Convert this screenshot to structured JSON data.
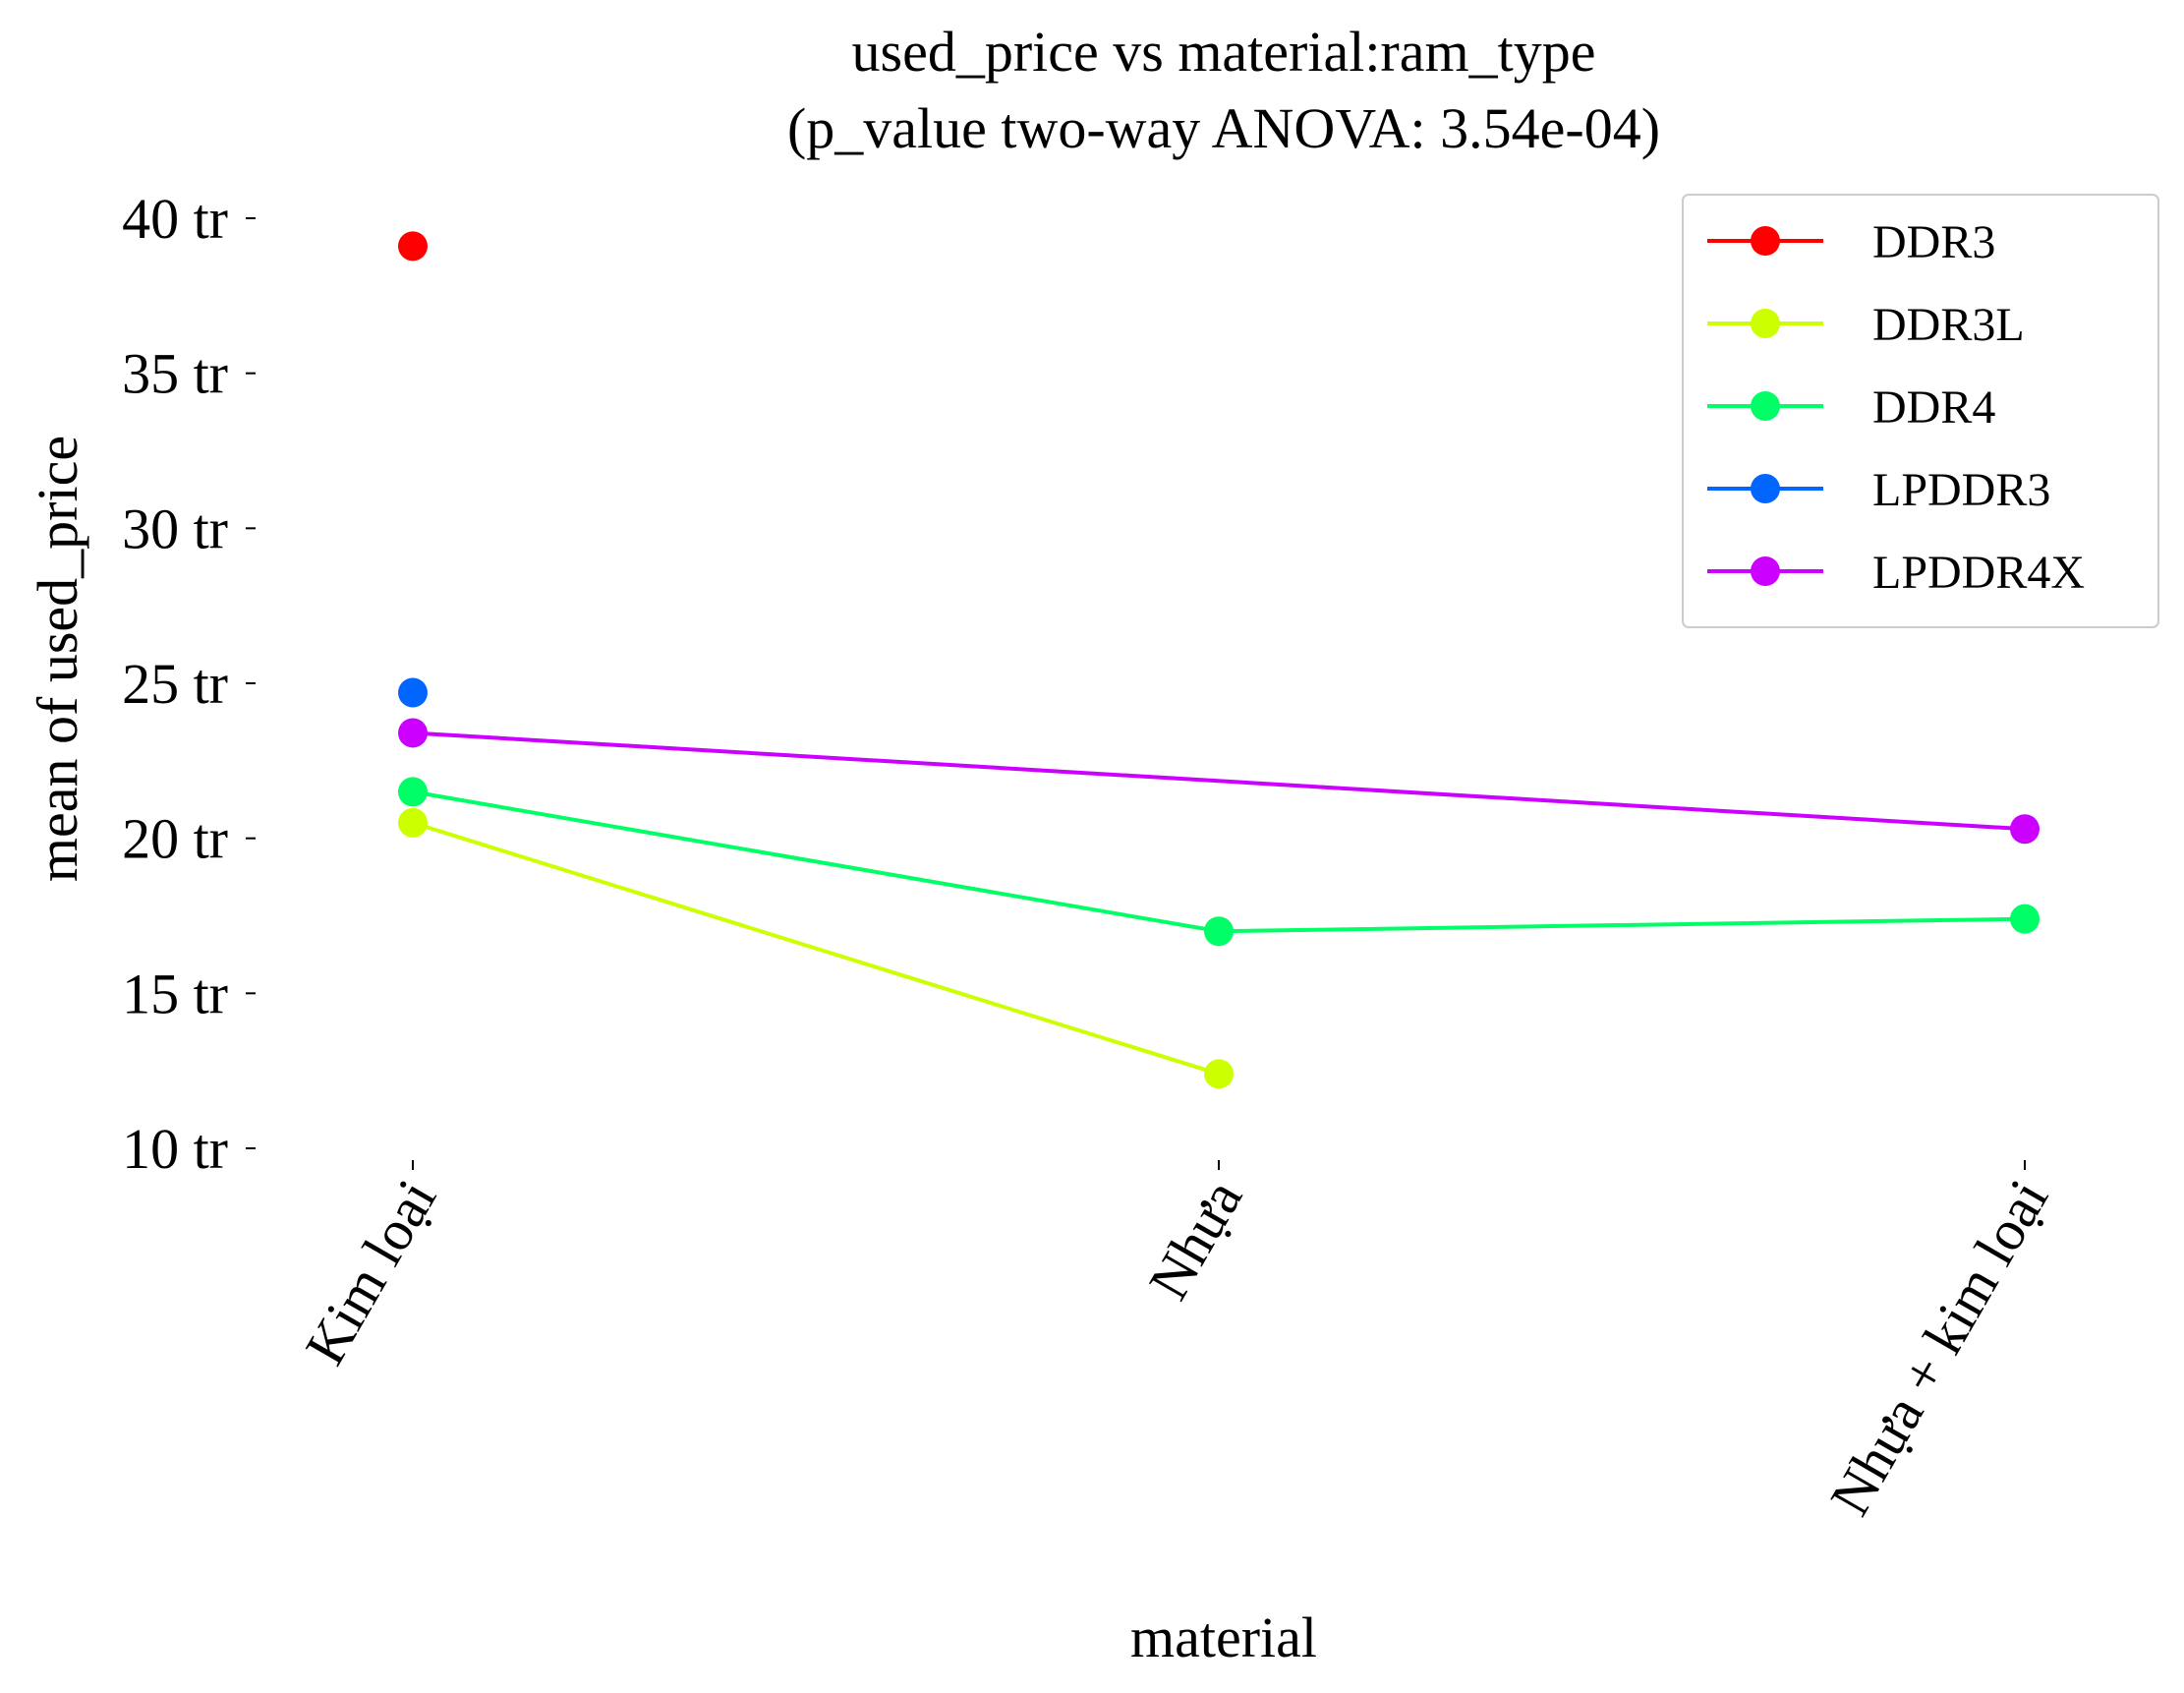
{
  "chart_data": {
    "type": "line",
    "title": "used_price vs material:ram_type",
    "subtitle": "(p_value two-way ANOVA: 3.54e-04)",
    "xlabel": "material",
    "ylabel": "mean of used_price",
    "categories": [
      "Kim loại",
      "Nhựa",
      "Nhựa + kim loại"
    ],
    "y_ticks": [
      10,
      15,
      20,
      25,
      30,
      35,
      40
    ],
    "y_tick_suffix": " tr",
    "ylim": [
      10,
      40
    ],
    "grid": false,
    "legend_position": "top-right",
    "series": [
      {
        "name": "DDR3",
        "color": "#ff0000",
        "values": [
          39.1,
          null,
          null
        ]
      },
      {
        "name": "DDR3L",
        "color": "#ccff00",
        "values": [
          20.5,
          12.4,
          null
        ]
      },
      {
        "name": "DDR4",
        "color": "#00ff66",
        "values": [
          21.5,
          17.0,
          17.4
        ]
      },
      {
        "name": "LPDDR3",
        "color": "#0066ff",
        "values": [
          24.7,
          null,
          null
        ]
      },
      {
        "name": "LPDDR4X",
        "color": "#cc00ff",
        "values": [
          23.4,
          null,
          20.3
        ]
      }
    ]
  }
}
